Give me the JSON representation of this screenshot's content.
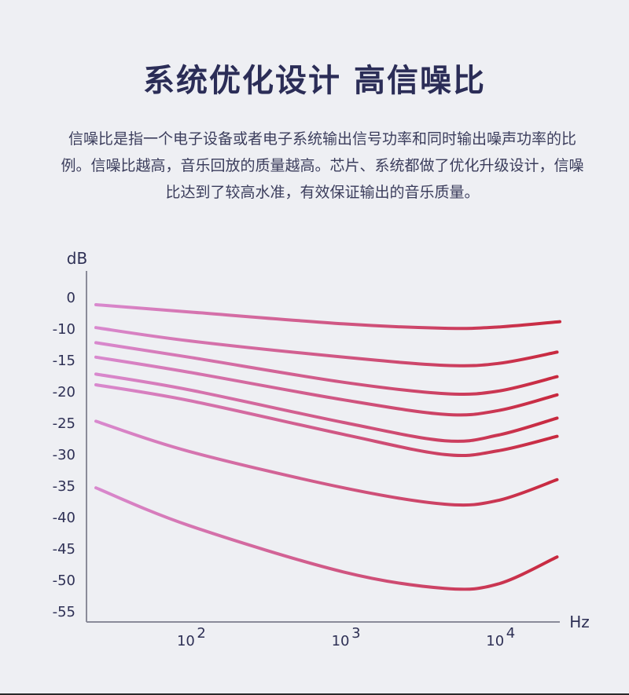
{
  "title": "系统优化设计 高信噪比",
  "description": "信噪比是指一个电子设备或者电子系统输出信号功率和同时输出噪声功率的比例。信噪比越高，音乐回放的质量越高。芯片、系统都做了优化升级设计，信噪比达到了较高水准，有效保证输出的音乐质量。",
  "chart_data": {
    "type": "line",
    "title": "",
    "xlabel": "Hz",
    "ylabel": "dB",
    "xscale": "log",
    "xlim": [
      25,
      25000
    ],
    "ylim": [
      -55,
      0
    ],
    "x_ticks": [
      {
        "value": 100,
        "label": "10",
        "exp": "2"
      },
      {
        "value": 1000,
        "label": "10",
        "exp": "3"
      },
      {
        "value": 10000,
        "label": "10",
        "exp": "4"
      }
    ],
    "y_ticks": [
      0,
      -10,
      -15,
      -20,
      -25,
      -30,
      -35,
      -40,
      -45,
      -50,
      -55
    ],
    "gradient": {
      "start": "#d98ad0",
      "end": "#c8283d"
    },
    "series": [
      {
        "x": [
          25,
          100,
          1000,
          4500,
          10000,
          25000
        ],
        "values": [
          -2.5,
          -4.8,
          -8.6,
          -10.0,
          -9.6,
          -7.9
        ]
      },
      {
        "x": [
          25,
          100,
          1000,
          4500,
          10000,
          24000
        ],
        "values": [
          -9.8,
          -12.0,
          -14.6,
          -15.9,
          -15.6,
          -13.8
        ]
      },
      {
        "x": [
          25,
          100,
          1000,
          4500,
          10000,
          24000
        ],
        "values": [
          -12.3,
          -14.6,
          -18.6,
          -20.4,
          -20.0,
          -17.7
        ]
      },
      {
        "x": [
          25,
          100,
          1000,
          4500,
          10000,
          24000
        ],
        "values": [
          -14.6,
          -17.0,
          -21.4,
          -23.7,
          -23.1,
          -20.6
        ]
      },
      {
        "x": [
          25,
          100,
          1000,
          4500,
          10000,
          24000
        ],
        "values": [
          -17.3,
          -19.8,
          -25.0,
          -27.9,
          -27.0,
          -24.3
        ]
      },
      {
        "x": [
          25,
          100,
          1000,
          4500,
          10000,
          24000
        ],
        "values": [
          -19.0,
          -21.5,
          -26.9,
          -30.1,
          -29.5,
          -27.2
        ]
      },
      {
        "x": [
          25,
          100,
          1000,
          4500,
          10000,
          24000
        ],
        "values": [
          -24.8,
          -29.6,
          -35.4,
          -38.0,
          -37.4,
          -34.1
        ]
      },
      {
        "x": [
          25,
          100,
          1000,
          4500,
          10000,
          24000
        ],
        "values": [
          -35.4,
          -41.4,
          -48.8,
          -51.4,
          -50.7,
          -46.4
        ]
      }
    ]
  }
}
